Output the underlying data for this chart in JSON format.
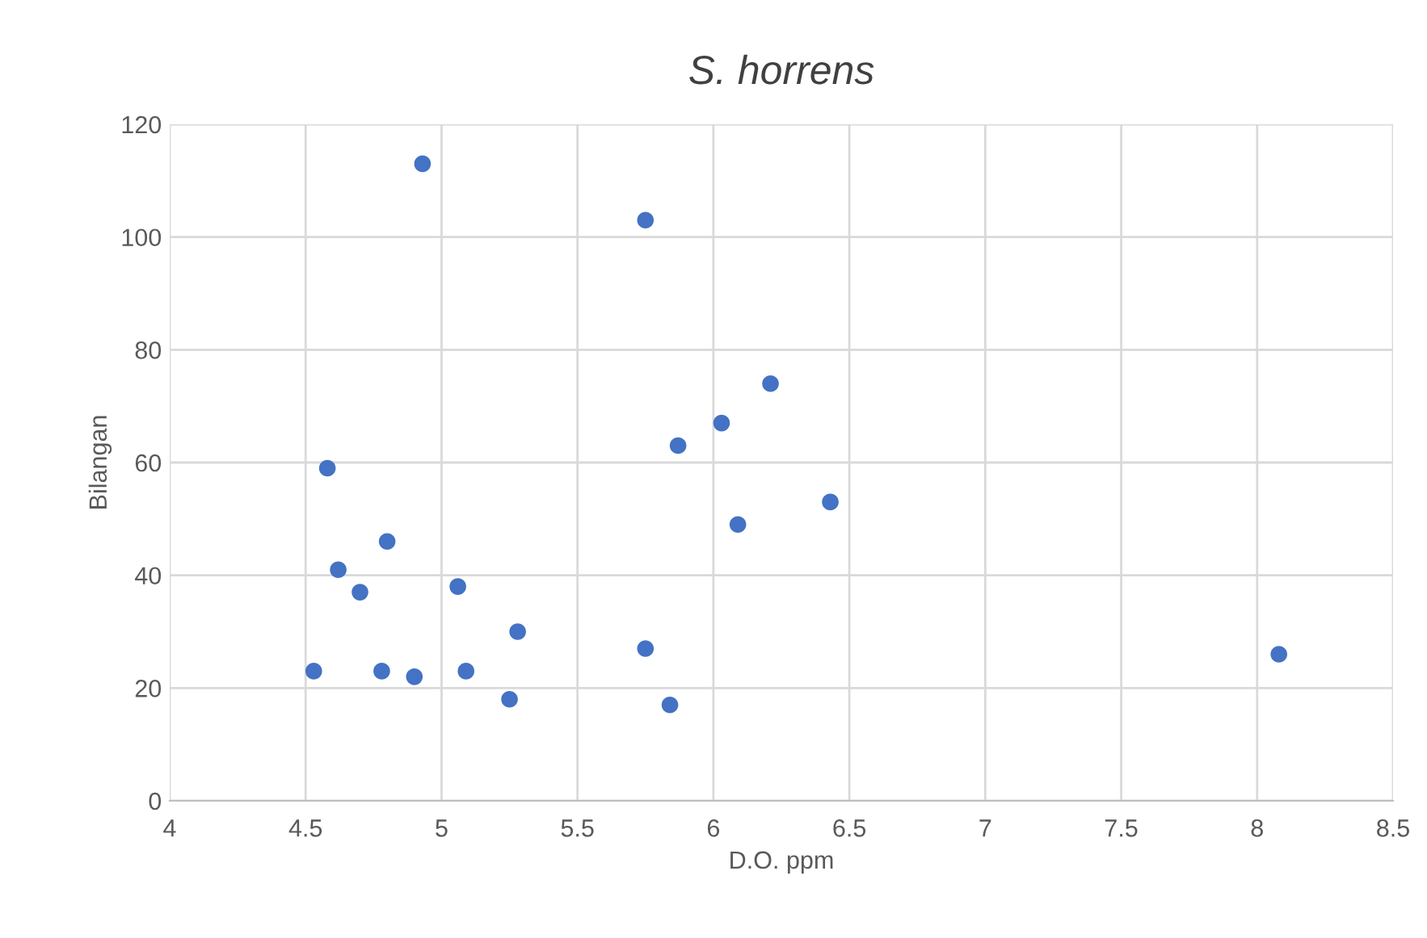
{
  "chart_data": {
    "type": "scatter",
    "title": "S. horrens",
    "xlabel": "D.O. ppm",
    "ylabel": "Bilangan",
    "x": [
      4.93,
      5.75,
      6.21,
      6.03,
      5.87,
      4.58,
      6.43,
      6.09,
      4.8,
      4.62,
      5.06,
      4.7,
      5.28,
      5.75,
      8.08,
      4.53,
      4.78,
      5.09,
      4.9,
      5.25,
      5.84
    ],
    "values": [
      113,
      103,
      74,
      67,
      63,
      59,
      53,
      49,
      46,
      41,
      38,
      37,
      30,
      27,
      26,
      23,
      23,
      23,
      22,
      18,
      17
    ],
    "color": "#4472c4",
    "marker": "circle",
    "xlim": [
      4,
      8.5
    ],
    "xticks": [
      4,
      4.5,
      5,
      5.5,
      6,
      6.5,
      7,
      7.5,
      8,
      8.5
    ],
    "ylim": [
      0,
      120
    ],
    "yticks": [
      0,
      20,
      40,
      60,
      80,
      100,
      120
    ],
    "grid": true
  }
}
